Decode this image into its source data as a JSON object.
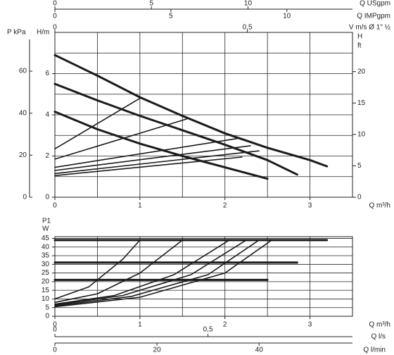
{
  "chart_data": [
    {
      "type": "line",
      "x_label": "Q m³/h",
      "y_label": "P kPa",
      "y_label_2": "H/m",
      "y2_label": "H",
      "y2_unit": "ft",
      "xlim": [
        0,
        3.5
      ],
      "xticks": [
        0,
        1,
        2,
        3
      ],
      "xgrid": [
        0,
        0.5,
        1,
        1.5,
        2,
        2.5,
        3,
        3.5
      ],
      "ylim": [
        0,
        8
      ],
      "yticks": [
        0,
        2,
        4,
        6
      ],
      "ygrid": [
        0,
        1,
        2,
        3,
        4,
        5,
        6,
        7,
        8
      ],
      "y3lim": [
        0,
        78.45
      ],
      "y3ticks": [
        0,
        20,
        40,
        60
      ],
      "y2lim": [
        0,
        26.25
      ],
      "y2ticks": [
        0,
        5,
        10,
        15,
        20
      ],
      "top_axes": [
        {
          "label": "Q USgpm",
          "lim": [
            0,
            15.41
          ],
          "ticks": [
            0,
            5,
            10
          ]
        },
        {
          "label": "Q IMPgpm",
          "lim": [
            0,
            12.83
          ],
          "ticks": [
            0,
            5,
            10
          ]
        },
        {
          "label": "V m/s Ø 1\" ½",
          "lim": [
            0,
            0.773
          ],
          "ticks": [
            0,
            {
              "value": 0.5,
              "label": "0,5"
            }
          ]
        }
      ],
      "series": [
        {
          "color": "#1a1a1a",
          "thick": true,
          "x": [
            0,
            0.5,
            1,
            1.5,
            2,
            2.5,
            3,
            3.2
          ],
          "values": [
            6.9,
            5.9,
            4.85,
            3.95,
            3.1,
            2.4,
            1.8,
            1.5
          ]
        },
        {
          "color": "#1a1a1a",
          "thick": true,
          "x": [
            0,
            0.5,
            1,
            1.5,
            2,
            2.5,
            2.85
          ],
          "values": [
            5.5,
            4.7,
            3.95,
            3.25,
            2.55,
            1.8,
            1.1
          ]
        },
        {
          "color": "#1a1a1a",
          "thick": true,
          "x": [
            0,
            0.5,
            1,
            1.5,
            2,
            2.5
          ],
          "values": [
            4.15,
            3.3,
            2.6,
            2.0,
            1.45,
            0.9
          ]
        },
        {
          "color": "#1a1a1a",
          "thick": false,
          "x": [
            0,
            1
          ],
          "values": [
            2.35,
            4.8
          ]
        },
        {
          "color": "#1a1a1a",
          "thick": false,
          "x": [
            0,
            1.55
          ],
          "values": [
            1.85,
            3.8
          ]
        },
        {
          "color": "#1a1a1a",
          "thick": false,
          "x": [
            0,
            2.15
          ],
          "values": [
            1.45,
            2.85
          ]
        },
        {
          "color": "#1a1a1a",
          "thick": false,
          "x": [
            0,
            2.3
          ],
          "values": [
            1.3,
            2.5
          ]
        },
        {
          "color": "#1a1a1a",
          "thick": false,
          "x": [
            0,
            2.4
          ],
          "values": [
            1.15,
            2.25
          ]
        },
        {
          "color": "#1a1a1a",
          "thick": false,
          "x": [
            0,
            2.2
          ],
          "values": [
            1.05,
            1.95
          ]
        }
      ]
    },
    {
      "type": "line",
      "x_label": "Q m³/h",
      "y_label": "P1",
      "y_unit": "W",
      "xlim": [
        0,
        3.5
      ],
      "xticks": [
        0,
        1,
        2,
        3
      ],
      "xgrid": [
        0,
        0.5,
        1,
        1.5,
        2,
        2.5,
        3,
        3.5
      ],
      "ylim": [
        0,
        46
      ],
      "yticks": [
        0,
        5,
        10,
        15,
        20,
        25,
        30,
        35,
        40,
        45
      ],
      "bottom_axes": [
        {
          "label": "Q l/s",
          "lim": [
            0,
            0.972
          ],
          "ticks": [
            0,
            {
              "value": 0.5,
              "label": "0,5"
            }
          ]
        },
        {
          "label": "Q l/min",
          "lim": [
            0,
            58.3
          ],
          "ticks": [
            0,
            20,
            40
          ]
        }
      ],
      "series": [
        {
          "color": "#1a1a1a",
          "thick": true,
          "x": [
            0,
            3.2
          ],
          "values": [
            44,
            44
          ]
        },
        {
          "color": "#1a1a1a",
          "thick": true,
          "x": [
            0,
            2.85
          ],
          "values": [
            31,
            31
          ]
        },
        {
          "color": "#1a1a1a",
          "thick": true,
          "x": [
            0,
            2.5
          ],
          "values": [
            21,
            21
          ]
        },
        {
          "color": "#1a1a1a",
          "thick": false,
          "x": [
            0,
            0.4,
            0.8,
            1.0
          ],
          "values": [
            10,
            17,
            33,
            44
          ]
        },
        {
          "color": "#1a1a1a",
          "thick": false,
          "x": [
            0,
            0.5,
            1.0,
            1.5
          ],
          "values": [
            8,
            13,
            25,
            44
          ]
        },
        {
          "color": "#1a1a1a",
          "thick": false,
          "x": [
            0,
            0.7,
            1.4,
            2.05
          ],
          "values": [
            7,
            12,
            24,
            44
          ]
        },
        {
          "color": "#1a1a1a",
          "thick": false,
          "x": [
            0,
            0.8,
            1.6,
            2.25
          ],
          "values": [
            6.5,
            12,
            24,
            44
          ]
        },
        {
          "color": "#1a1a1a",
          "thick": false,
          "x": [
            0,
            0.9,
            1.8,
            2.4
          ],
          "values": [
            6,
            11.5,
            24,
            44
          ]
        },
        {
          "color": "#1a1a1a",
          "thick": false,
          "x": [
            0,
            1.0,
            2.0,
            2.55
          ],
          "values": [
            5.5,
            11,
            25,
            44
          ]
        }
      ]
    }
  ]
}
